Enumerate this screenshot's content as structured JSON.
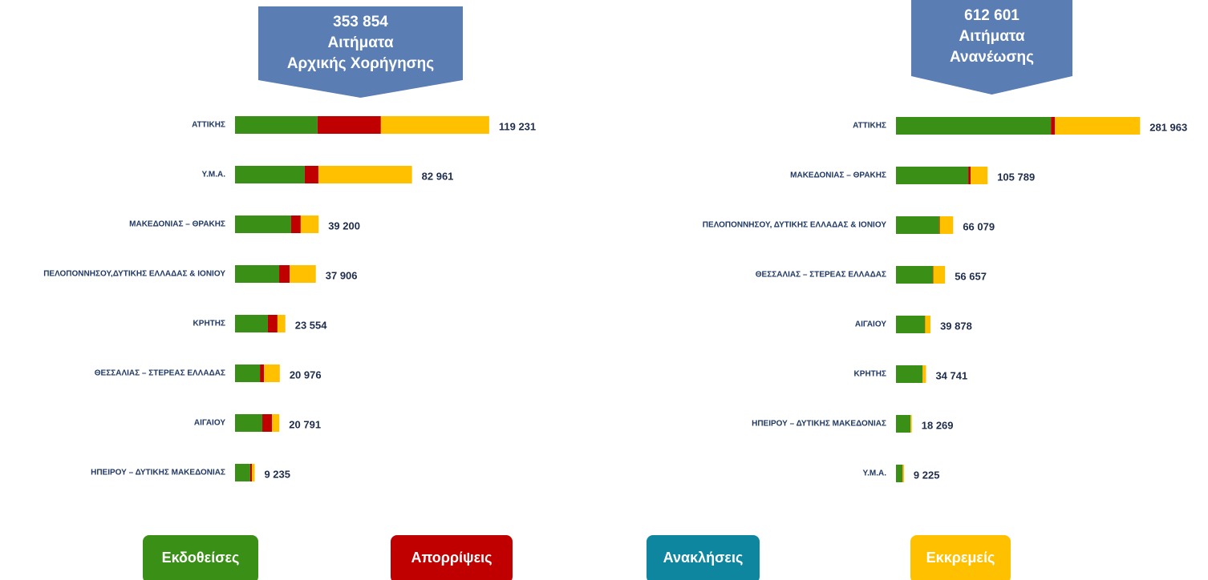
{
  "chart_data": [
    {
      "type": "stacked-bar",
      "title": [
        "353 854",
        "Αιτήματα",
        "Αρχικής Χορήγησης"
      ],
      "categories": [
        "ΑΤΤΙΚΗΣ",
        "Υ.Μ.Α.",
        "ΜΑΚΕΔΟΝΙΑΣ – ΘΡΑΚΗΣ",
        "ΠΕΛΟΠΟΝΝΗΣΟΥ,ΔΥΤΙΚΗΣ ΕΛΛΑΔΑΣ & ΙΟΝΙΟΥ",
        "ΚΡΗΤΗΣ",
        "ΘΕΣΣΑΛΙΑΣ – ΣΤΕΡΕΑΣ ΕΛΛΑΔΑΣ",
        "ΑΙΓΑΙΟΥ",
        "ΗΠΕΙΡΟΥ – ΔΥΤΙΚΗΣ ΜΑΚΕΔΟΝΙΑΣ"
      ],
      "series": [
        {
          "color": "#3a8f16",
          "values": [
            38700,
            32700,
            26300,
            20700,
            15400,
            11700,
            12800,
            7100
          ]
        },
        {
          "color": "#c00000",
          "values": [
            29700,
            6400,
            4500,
            4900,
            4500,
            1900,
            4500,
            800
          ]
        },
        {
          "color": "#0e86a0",
          "values": [
            0,
            0,
            0,
            0,
            0,
            0,
            0,
            0
          ]
        },
        {
          "color": "#ffc000",
          "values": [
            50800,
            43900,
            8400,
            12300,
            3700,
            7400,
            3500,
            1300
          ]
        }
      ],
      "total_labels": [
        "119 231",
        "82 961",
        "39 200",
        "37 906",
        "23 554",
        "20 976",
        "20 791",
        "9 235"
      ],
      "xlim": [
        0,
        120000
      ]
    },
    {
      "type": "stacked-bar",
      "title": [
        "612 601",
        "Αιτήματα",
        "Ανανέωσης"
      ],
      "categories": [
        "ΑΤΤΙΚΗΣ",
        "ΜΑΚΕΔΟΝΙΑΣ – ΘΡΑΚΗΣ",
        "ΠΕΛΟΠΟΝΝΗΣΟΥ, ΔΥΤΙΚΗΣ ΕΛΛΑΔΑΣ & ΙΟΝΙΟΥ",
        "ΘΕΣΣΑΛΙΑΣ – ΣΤΕΡΕΑΣ ΕΛΛΑΔΑΣ",
        "ΑΙΓΑΙΟΥ",
        "ΚΡΗΤΗΣ",
        "ΗΠΕΙΡΟΥ – ΔΥΤΙΚΗΣ ΜΑΚΕΔΟΝΙΑΣ",
        "Υ.Μ.Α."
      ],
      "series": [
        {
          "color": "#3a8f16",
          "values": [
            179000,
            83500,
            50000,
            42700,
            33400,
            30600,
            16700,
            7400
          ]
        },
        {
          "color": "#c00000",
          "values": [
            4600,
            2800,
            500,
            400,
            300,
            200,
            100,
            300
          ]
        },
        {
          "color": "#0e86a0",
          "values": [
            0,
            0,
            0,
            0,
            0,
            0,
            0,
            0
          ]
        },
        {
          "color": "#ffc000",
          "values": [
            98300,
            19500,
            15600,
            13600,
            6200,
            3900,
            1500,
            1500
          ]
        }
      ],
      "total_labels": [
        "281 963",
        "105 789",
        "66 079",
        "56 657",
        "39 878",
        "34 741",
        "18 269",
        "9 225"
      ],
      "xlim": [
        0,
        290000
      ]
    }
  ],
  "legend": [
    {
      "name": "Εκδοθείσες",
      "color": "#3a8f16"
    },
    {
      "name": "Απορρίψεις",
      "color": "#c00000"
    },
    {
      "name": "Ανακλήσεις",
      "color": "#0e86a0"
    },
    {
      "name": "Εκκρεμείς",
      "color": "#ffc000"
    }
  ]
}
